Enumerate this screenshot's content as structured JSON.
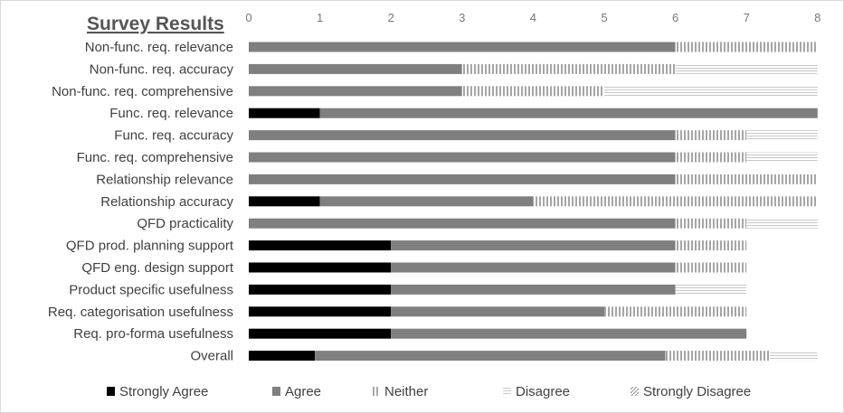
{
  "chart_data": {
    "type": "bar",
    "orientation": "horizontal",
    "stacked": true,
    "title": "Survey Results",
    "xlim": [
      0,
      8
    ],
    "xticks": [
      0,
      1,
      2,
      3,
      4,
      5,
      6,
      7,
      8
    ],
    "xaxis_position": "top",
    "grid": false,
    "legend_position": "bottom",
    "categories": [
      "Non-func. req. relevance",
      "Non-func. req. accuracy",
      "Non-func. req. comprehensive",
      "Func. req. relevance",
      "Func. req. accuracy",
      "Func. req. comprehensive",
      "Relationship relevance",
      "Relationship accuracy",
      "QFD practicality",
      "QFD prod. planning support",
      "QFD eng. design support",
      "Product specific usefulness",
      "Req. categorisation usefulness",
      "Req. pro-forma usefulness",
      "Overall"
    ],
    "series": [
      {
        "name": "Strongly Agree",
        "color": "#000000",
        "pattern": "solid",
        "values": [
          0,
          0,
          0,
          1,
          0,
          0,
          0,
          1,
          0,
          2,
          2,
          2,
          2,
          2,
          0.93
        ]
      },
      {
        "name": "Agree",
        "color": "#7f7f7f",
        "pattern": "solid",
        "values": [
          6,
          3,
          3,
          7,
          6,
          6,
          6,
          3,
          6,
          4,
          4,
          4,
          3,
          5,
          4.93
        ]
      },
      {
        "name": "Neither",
        "color": "#a6a6a6",
        "pattern": "vertical",
        "values": [
          2,
          3,
          2,
          0,
          1,
          1,
          2,
          4,
          1,
          1,
          1,
          0,
          2,
          0,
          1.47
        ]
      },
      {
        "name": "Disagree",
        "color": "#bfbfbf",
        "pattern": "horizontal",
        "values": [
          0,
          2,
          3,
          0,
          1,
          1,
          0,
          0,
          1,
          0,
          0,
          1,
          0,
          0,
          0.67
        ]
      },
      {
        "name": "Strongly Disagree",
        "color": "#8c8c8c",
        "pattern": "diagonal",
        "values": [
          0,
          0,
          0,
          0,
          0,
          0,
          0,
          0,
          0,
          0,
          0,
          0,
          0,
          0,
          0
        ]
      }
    ]
  }
}
